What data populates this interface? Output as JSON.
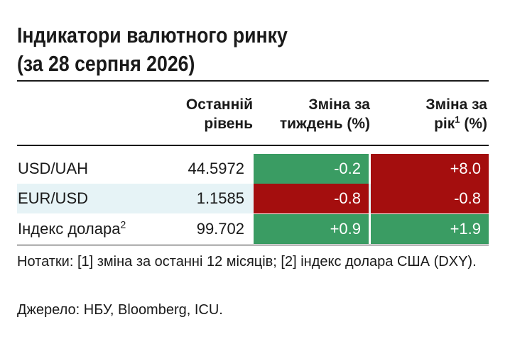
{
  "title": {
    "line1": "Індикатори валютного ринку",
    "line2": "(за 28 серпня 2026)"
  },
  "columns": {
    "level": {
      "line1": "Останній",
      "line2": "рівень"
    },
    "week": {
      "line1": "Зміна за",
      "line2": "тиждень (%)"
    },
    "year": {
      "line1": "Зміна за",
      "line2_pre": "рік",
      "line2_sup": "1",
      "line2_post": " (%)"
    }
  },
  "rows": [
    {
      "name": "USD/UAH",
      "name_sup": "",
      "level": "44.5972",
      "week": "-0.2",
      "week_color": "#3a9c63",
      "year": "+8.0",
      "year_color": "#a40e0e"
    },
    {
      "name": "EUR/USD",
      "name_sup": "",
      "level": "1.1585",
      "week": "-0.8",
      "week_color": "#a40e0e",
      "year": "-0.8",
      "year_color": "#a40e0e"
    },
    {
      "name": "Індекс долара",
      "name_sup": "2",
      "level": "99.702",
      "week": "+0.9",
      "week_color": "#3a9c63",
      "year": "+1.9",
      "year_color": "#3a9c63"
    }
  ],
  "notes": "Нотатки: [1] зміна за останні 12 місяців; [2] індекс долара США (DXY).",
  "source": "Джерело: НБУ, Bloomberg, ICU."
}
